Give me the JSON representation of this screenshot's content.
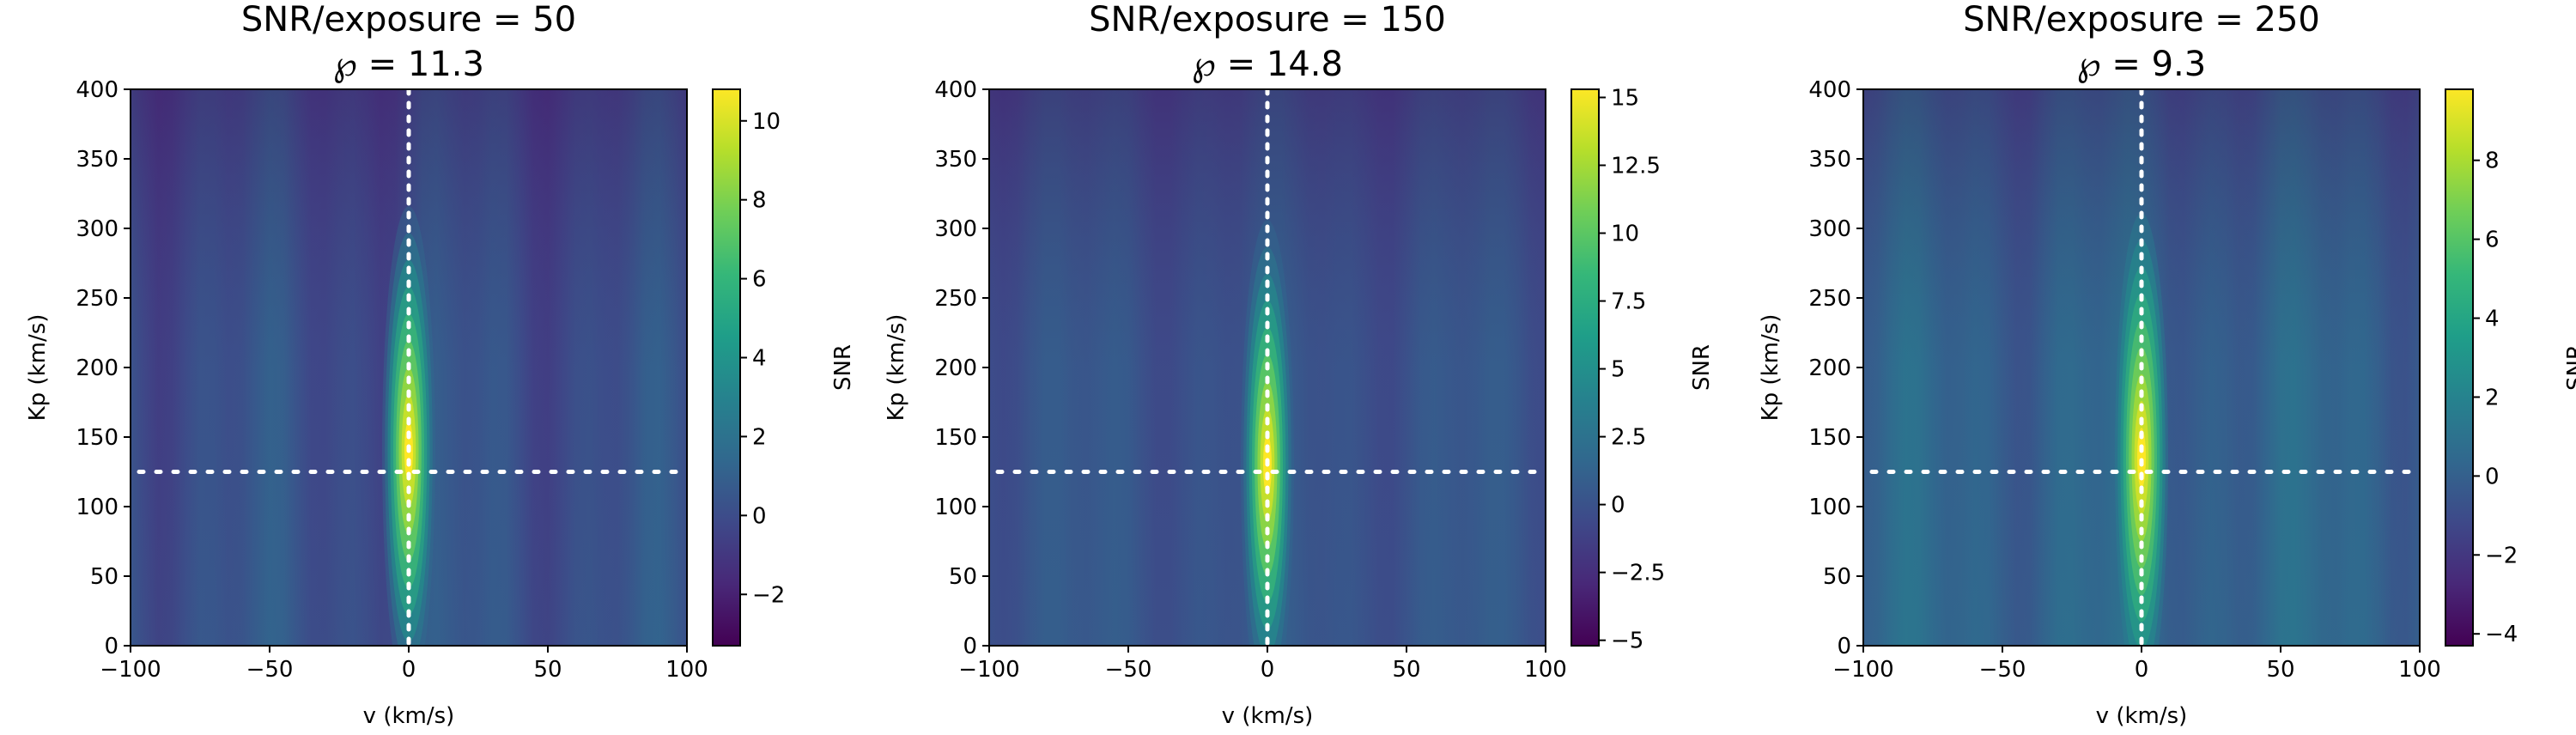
{
  "chart_data": [
    {
      "type": "heatmap",
      "title_line1": "SNR/exposure = 50",
      "title_line2": "℘ = 11.3",
      "xlabel": "v (km/s)",
      "ylabel": "Kp (km/s)",
      "xlim": [
        -100,
        100
      ],
      "ylim": [
        0,
        400
      ],
      "xticks": [
        -100,
        -50,
        0,
        50,
        100
      ],
      "xtick_labels": [
        "−100",
        "−50",
        "0",
        "50",
        "100"
      ],
      "yticks": [
        0,
        50,
        100,
        150,
        200,
        250,
        300,
        350,
        400
      ],
      "ytick_labels": [
        "0",
        "50",
        "100",
        "150",
        "200",
        "250",
        "300",
        "350",
        "400"
      ],
      "colorbar_label": "SNR",
      "colorbar_range": [
        -3.3,
        10.8
      ],
      "colorbar_ticks": [
        -2,
        0,
        2,
        4,
        6,
        8,
        10
      ],
      "colorbar_tick_labels": [
        "−2",
        "0",
        "2",
        "4",
        "6",
        "8",
        "10"
      ],
      "peak": {
        "v": 0,
        "kp": 140,
        "snr": 10.8
      },
      "reference_lines": {
        "v": 0,
        "kp": 125
      }
    },
    {
      "type": "heatmap",
      "title_line1": "SNR/exposure = 150",
      "title_line2": "℘ = 14.8",
      "xlabel": "v (km/s)",
      "ylabel": "Kp (km/s)",
      "xlim": [
        -100,
        100
      ],
      "ylim": [
        0,
        400
      ],
      "xticks": [
        -100,
        -50,
        0,
        50,
        100
      ],
      "xtick_labels": [
        "−100",
        "−50",
        "0",
        "50",
        "100"
      ],
      "yticks": [
        0,
        50,
        100,
        150,
        200,
        250,
        300,
        350,
        400
      ],
      "ytick_labels": [
        "0",
        "50",
        "100",
        "150",
        "200",
        "250",
        "300",
        "350",
        "400"
      ],
      "colorbar_label": "SNR",
      "colorbar_range": [
        -5.2,
        15.3
      ],
      "colorbar_ticks": [
        -5,
        -2.5,
        0,
        2.5,
        5,
        7.5,
        10,
        12.5,
        15
      ],
      "colorbar_tick_labels": [
        "−5",
        "−2.5",
        "0",
        "2.5",
        "5",
        "7.5",
        "10",
        "12.5",
        "15"
      ],
      "peak": {
        "v": 0,
        "kp": 130,
        "snr": 15.3
      },
      "reference_lines": {
        "v": 0,
        "kp": 125
      }
    },
    {
      "type": "heatmap",
      "title_line1": "SNR/exposure = 250",
      "title_line2": "℘ = 9.3",
      "xlabel": "v (km/s)",
      "ylabel": "Kp (km/s)",
      "xlim": [
        -100,
        100
      ],
      "ylim": [
        0,
        400
      ],
      "xticks": [
        -100,
        -50,
        0,
        50,
        100
      ],
      "xtick_labels": [
        "−100",
        "−50",
        "0",
        "50",
        "100"
      ],
      "yticks": [
        0,
        50,
        100,
        150,
        200,
        250,
        300,
        350,
        400
      ],
      "ytick_labels": [
        "0",
        "50",
        "100",
        "150",
        "200",
        "250",
        "300",
        "350",
        "400"
      ],
      "colorbar_label": "SNR",
      "colorbar_range": [
        -4.3,
        9.8
      ],
      "colorbar_ticks": [
        -4,
        -2,
        0,
        2,
        4,
        6,
        8
      ],
      "colorbar_tick_labels": [
        "−4",
        "−2",
        "0",
        "2",
        "4",
        "6",
        "8"
      ],
      "peak": {
        "v": 0,
        "kp": 135,
        "snr": 9.8
      },
      "reference_lines": {
        "v": 0,
        "kp": 125
      }
    }
  ],
  "colormap": [
    "#440154",
    "#482878",
    "#3e4989",
    "#31688e",
    "#26828e",
    "#1f9e89",
    "#35b779",
    "#6ece58",
    "#b5de2b",
    "#fde725"
  ]
}
